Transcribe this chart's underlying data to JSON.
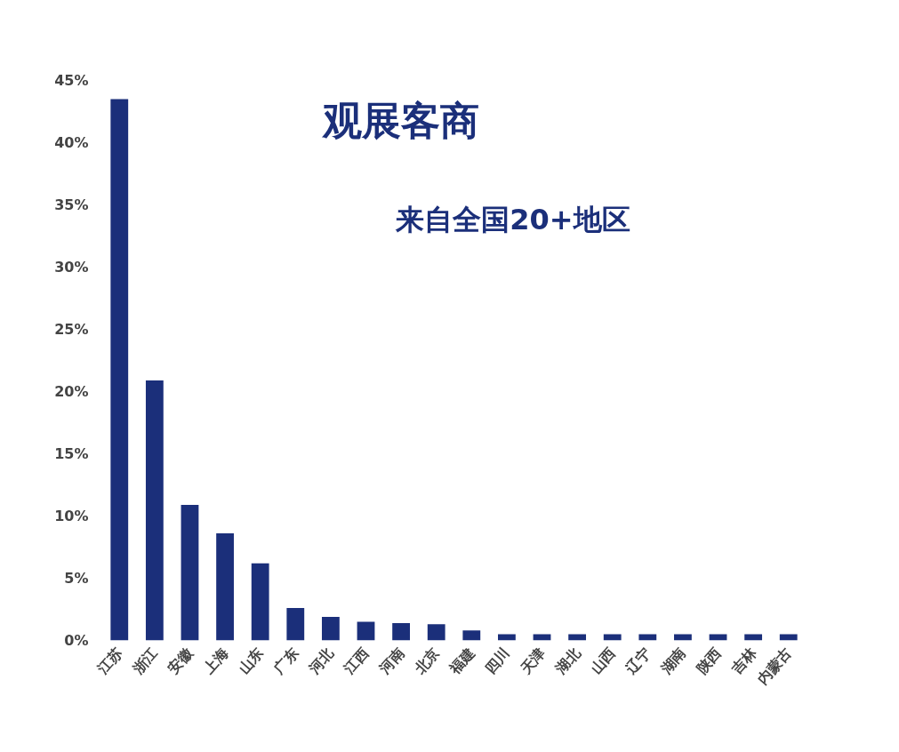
{
  "chart_data": {
    "type": "bar",
    "title": "观展客商",
    "subtitle": "来自全国20+地区",
    "categories": [
      "江苏",
      "浙江",
      "安徽",
      "上海",
      "山东",
      "广东",
      "河北",
      "江西",
      "河南",
      "北京",
      "福建",
      "四川",
      "天津",
      "湖北",
      "山西",
      "辽宁",
      "湖南",
      "陕西",
      "吉林",
      "内蒙古"
    ],
    "values": [
      43.5,
      20.9,
      10.9,
      8.6,
      6.2,
      2.6,
      1.9,
      1.5,
      1.4,
      1.3,
      0.8,
      0.5,
      0.5,
      0.5,
      0.5,
      0.5,
      0.5,
      0.5,
      0.5,
      0.5
    ],
    "color": "#1b2f7a",
    "ylim": [
      0,
      45
    ],
    "yticks": [
      {
        "value": 0,
        "label": "0%"
      },
      {
        "value": 5,
        "label": "5%"
      },
      {
        "value": 10,
        "label": "10%"
      },
      {
        "value": 15,
        "label": "15%"
      },
      {
        "value": 20,
        "label": "20%"
      },
      {
        "value": 25,
        "label": "25%"
      },
      {
        "value": 30,
        "label": "30%"
      },
      {
        "value": 35,
        "label": "35%"
      },
      {
        "value": 40,
        "label": "40%"
      },
      {
        "value": 45,
        "label": "45%"
      }
    ],
    "grid": false
  }
}
